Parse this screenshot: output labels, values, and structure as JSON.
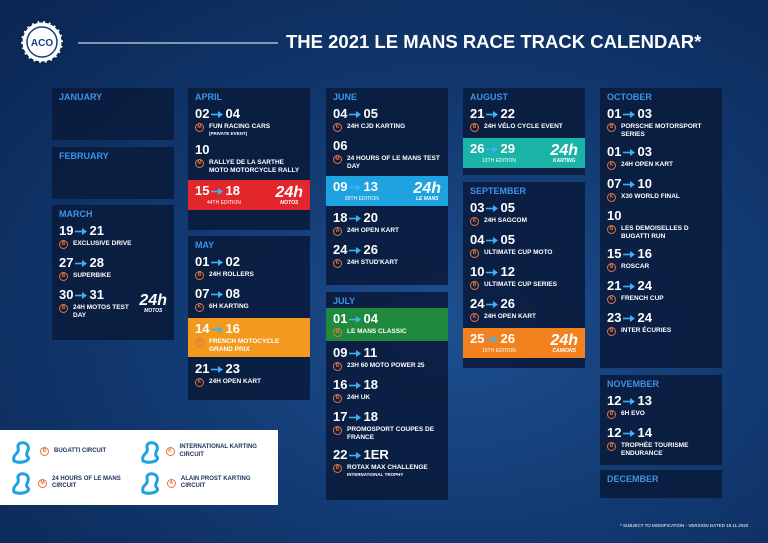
{
  "header": {
    "logo": "ACO",
    "title": "THE 2021 LE MANS RACE TRACK CALENDAR*"
  },
  "months": [
    {
      "name": "JANUARY",
      "events": []
    },
    {
      "name": "FEBRUARY",
      "events": []
    },
    {
      "name": "MARCH",
      "events": [
        {
          "start": "19",
          "end": "21",
          "circuit": "B",
          "name": "EXCLUSIVE DRIVE"
        },
        {
          "start": "27",
          "end": "28",
          "circuit": "B",
          "name": "SUPERBIKE"
        },
        {
          "start": "30",
          "end": "31",
          "circuit": "B",
          "name": "24H MOTOS TEST DAY",
          "logo": "24h",
          "logo_sub": "MOTOS"
        }
      ]
    },
    {
      "name": "APRIL",
      "events": [
        {
          "start": "02",
          "end": "04",
          "circuit": "M",
          "name": "FUN RACING CARS",
          "note": "(PRIVATE EVENT)"
        },
        {
          "start": "10",
          "circuit": "M",
          "name": "RALLYE DE LA SARTHE MOTO MOTORCYCLE RALLY"
        },
        {
          "start": "15",
          "end": "18",
          "edition": "44TH EDITION",
          "logo": "24h",
          "logo_sub": "MOTOS",
          "color": "#e3262b"
        }
      ]
    },
    {
      "name": "MAY",
      "events": [
        {
          "start": "01",
          "end": "02",
          "circuit": "B",
          "name": "24H ROLLERS"
        },
        {
          "start": "07",
          "end": "08",
          "circuit": "K",
          "name": "6H KARTING"
        },
        {
          "start": "14",
          "end": "16",
          "circuit": "B",
          "name": "FRENCH MOTOCYCLE GRAND PRIX",
          "color": "#f39a1e"
        },
        {
          "start": "21",
          "end": "23",
          "circuit": "K",
          "name": "24H OPEN KART"
        }
      ]
    },
    {
      "name": "JUNE",
      "events": [
        {
          "start": "04",
          "end": "05",
          "circuit": "K",
          "name": "24H CJD KARTING"
        },
        {
          "start": "06",
          "circuit": "M",
          "name": "24 HOURS OF LE MANS TEST DAY"
        },
        {
          "start": "09",
          "end": "13",
          "edition": "89TH EDITION",
          "logo": "24h",
          "logo_sub": "LE MANS",
          "color": "#1fa3e0"
        },
        {
          "start": "18",
          "end": "20",
          "circuit": "A",
          "name": "24H OPEN KART"
        },
        {
          "start": "24",
          "end": "26",
          "circuit": "K",
          "name": "24H STUD'KART"
        }
      ]
    },
    {
      "name": "JULY",
      "events": [
        {
          "start": "01",
          "end": "04",
          "circuit": "B",
          "name": "LE MANS CLASSIC",
          "color": "#1f8a3e"
        },
        {
          "start": "09",
          "end": "11",
          "circuit": "B",
          "name": "23H 60 MOTO POWER 25"
        },
        {
          "start": "16",
          "end": "18",
          "circuit": "B",
          "name": "24H UK"
        },
        {
          "start": "17",
          "end": "18",
          "circuit": "B",
          "name": "PROMOSPORT COUPES DE FRANCE"
        },
        {
          "start": "22",
          "end": "1ER",
          "circuit": "B",
          "name": "ROTAX MAX CHALLENGE",
          "note": "INTERNATIONAL TROPHY"
        }
      ]
    },
    {
      "name": "AUGUST",
      "events": [
        {
          "start": "21",
          "end": "22",
          "circuit": "B",
          "name": "24H VÉLO CYCLE EVENT"
        },
        {
          "start": "26",
          "end": "29",
          "edition": "13TH EDITION",
          "logo": "24h",
          "logo_sub": "KARTING",
          "color": "#19b3a8"
        }
      ]
    },
    {
      "name": "SEPTEMBER",
      "events": [
        {
          "start": "03",
          "end": "05",
          "circuit": "K",
          "name": "24H SAGCOM"
        },
        {
          "start": "04",
          "end": "05",
          "circuit": "B",
          "name": "ULTIMATE CUP MOTO"
        },
        {
          "start": "10",
          "end": "12",
          "circuit": "B",
          "name": "ULTIMATE CUP SERIES"
        },
        {
          "start": "24",
          "end": "26",
          "circuit": "K",
          "name": "24H OPEN KART"
        },
        {
          "start": "25",
          "end": "26",
          "edition": "16TH EDITION",
          "logo": "24h",
          "logo_sub": "CAMIONS",
          "color": "#f3821e"
        }
      ]
    },
    {
      "name": "OCTOBER",
      "events": [
        {
          "start": "01",
          "end": "03",
          "circuit": "B",
          "name": "PORSCHE MOTORSPORT SERIES"
        },
        {
          "start": "01",
          "end": "03",
          "circuit": "K",
          "name": "24H OPEN KART"
        },
        {
          "start": "07",
          "end": "10",
          "circuit": "K",
          "name": "X30 WORLD FINAL"
        },
        {
          "start": "10",
          "circuit": "B",
          "name": "LES DEMOISELLES D BUGATTI RUN"
        },
        {
          "start": "15",
          "end": "16",
          "circuit": "B",
          "name": "ROSCAR"
        },
        {
          "start": "21",
          "end": "24",
          "circuit": "K",
          "name": "FRENCH CUP"
        },
        {
          "start": "23",
          "end": "24",
          "circuit": "B",
          "name": "INTER ÉCURIES"
        }
      ]
    },
    {
      "name": "NOVEMBER",
      "events": [
        {
          "start": "12",
          "end": "13",
          "circuit": "B",
          "name": "6H EVO"
        },
        {
          "start": "12",
          "end": "14",
          "circuit": "B",
          "name": "TROPHÉE TOURISME ENDURANCE"
        }
      ]
    },
    {
      "name": "DECEMBER",
      "events": []
    }
  ],
  "legend": [
    {
      "circuit": "B",
      "label": "BUGATTI CIRCUIT"
    },
    {
      "circuit": "K",
      "label": "INTERNATIONAL KARTING CIRCUIT"
    },
    {
      "circuit": "M",
      "label": "24 HOURS OF LE MANS CIRCUIT"
    },
    {
      "circuit": "A",
      "label": "ALAIN PROST KARTING CIRCUIT"
    }
  ],
  "footer": "* SUBJECT TO MODIFICATION - VERSION DATED 19.11.2020"
}
